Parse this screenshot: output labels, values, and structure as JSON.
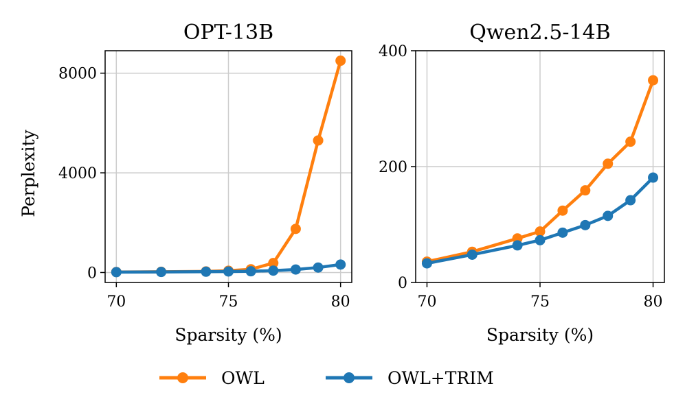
{
  "colors": {
    "owl": "#ff7f0e",
    "trim": "#1f77b4",
    "grid": "#cccccc",
    "axis": "#000000"
  },
  "legend": {
    "items": [
      "OWL",
      "OWL+TRIM"
    ]
  },
  "chart_data": [
    {
      "type": "line",
      "title": "OPT-13B",
      "xlabel": "Sparsity (%)",
      "ylabel": "Perplexity",
      "xlim": [
        69.5,
        80.5
      ],
      "ylim": [
        -400,
        8900
      ],
      "xticks": [
        70,
        75,
        80
      ],
      "yticks": [
        0,
        4000,
        8000
      ],
      "x": [
        70,
        72,
        74,
        75,
        76,
        77,
        78,
        79,
        80
      ],
      "series": [
        {
          "name": "OWL",
          "values": [
            20,
            30,
            45,
            70,
            130,
            380,
            1750,
            5300,
            8500
          ]
        },
        {
          "name": "OWL+TRIM",
          "values": [
            15,
            22,
            32,
            40,
            50,
            75,
            120,
            200,
            320
          ]
        }
      ]
    },
    {
      "type": "line",
      "title": "Qwen2.5-14B",
      "xlabel": "Sparsity (%)",
      "ylabel": "",
      "xlim": [
        69.5,
        80.5
      ],
      "ylim": [
        0,
        400
      ],
      "xticks": [
        70,
        75,
        80
      ],
      "yticks": [
        0,
        200,
        400
      ],
      "x": [
        70,
        72,
        74,
        75,
        76,
        77,
        78,
        79,
        80
      ],
      "series": [
        {
          "name": "OWL",
          "values": [
            36,
            53,
            76,
            88,
            124,
            159,
            205,
            243,
            349
          ]
        },
        {
          "name": "OWL+TRIM",
          "values": [
            33,
            48,
            64,
            73,
            86,
            99,
            115,
            142,
            181
          ]
        }
      ]
    }
  ]
}
